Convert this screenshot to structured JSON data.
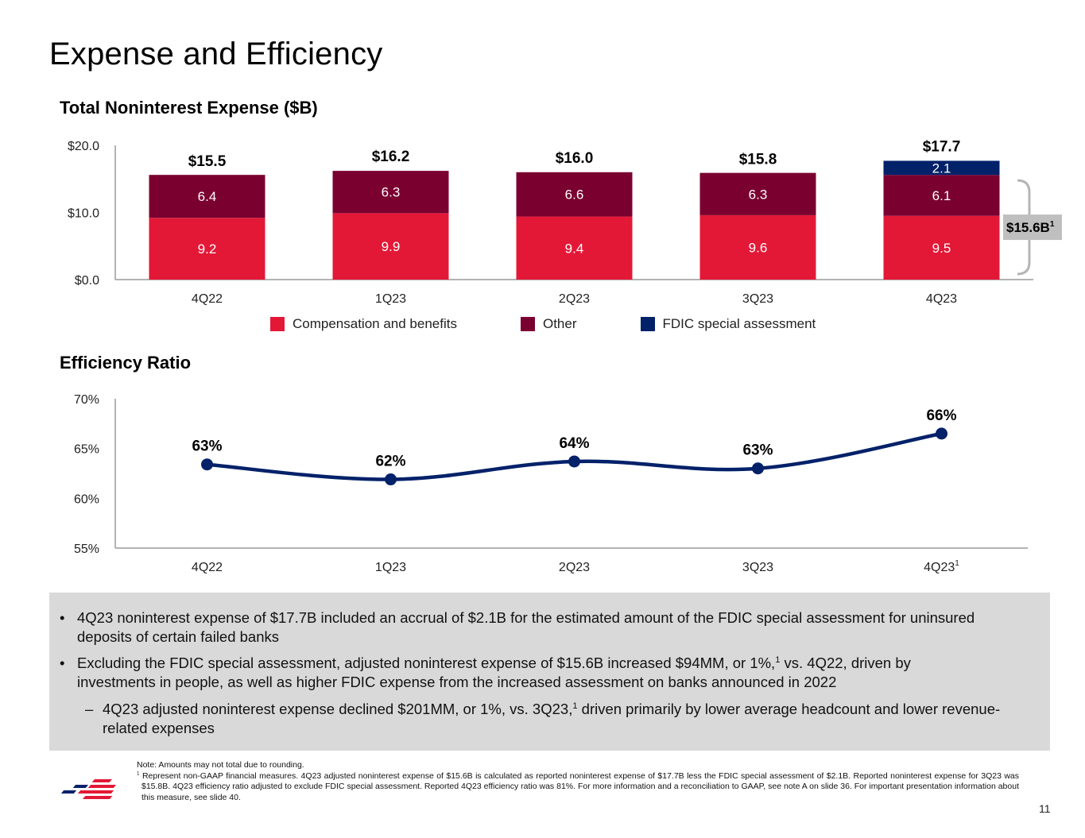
{
  "page": {
    "title": "Expense and Efficiency",
    "page_number": "11"
  },
  "colors": {
    "compensation": "#e31837",
    "other": "#7a0030",
    "fdic": "#012169",
    "line": "#012169",
    "bracket_label_bg": "#bfbfbf",
    "bullet_box_bg": "#d9d9d9"
  },
  "chart_data": [
    {
      "type": "bar",
      "stacked": true,
      "title": "Total Noninterest Expense ($B)",
      "xlabel": "",
      "ylabel": "",
      "ylim": [
        0,
        20
      ],
      "yticks": [
        0,
        10,
        20
      ],
      "ytick_labels": [
        "$0.0",
        "$10.0",
        "$20.0"
      ],
      "categories": [
        "4Q22",
        "1Q23",
        "2Q23",
        "3Q23",
        "4Q23"
      ],
      "series": [
        {
          "name": "Compensation and benefits",
          "color": "#e31837",
          "values": [
            9.2,
            9.9,
            9.4,
            9.6,
            9.5
          ],
          "labels": [
            "9.2",
            "9.9",
            "9.4",
            "9.6",
            "9.5"
          ]
        },
        {
          "name": "Other",
          "color": "#7a0030",
          "values": [
            6.4,
            6.3,
            6.6,
            6.3,
            6.1
          ],
          "labels": [
            "6.4",
            "6.3",
            "6.6",
            "6.3",
            "6.1"
          ]
        },
        {
          "name": "FDIC special assessment",
          "color": "#012169",
          "values": [
            0,
            0,
            0,
            0,
            2.1
          ],
          "labels": [
            "",
            "",
            "",
            "",
            "2.1"
          ]
        }
      ],
      "totals": [
        15.5,
        16.2,
        16.0,
        15.8,
        17.7
      ],
      "total_labels": [
        "$15.5",
        "$16.2",
        "$16.0",
        "$15.8",
        "$17.7"
      ],
      "annotation": {
        "text": "$15.6B",
        "footnote": "1",
        "applies_to": "4Q23",
        "spans_series": [
          "Compensation and benefits",
          "Other"
        ]
      },
      "legend": {
        "position": "bottom",
        "entries": [
          "Compensation and benefits",
          "Other",
          "FDIC special assessment"
        ]
      },
      "grid": false
    },
    {
      "type": "line",
      "title": "Efficiency Ratio",
      "xlabel": "",
      "ylabel": "",
      "ylim": [
        55,
        70
      ],
      "yticks": [
        55,
        60,
        65,
        70
      ],
      "ytick_labels": [
        "55%",
        "60%",
        "65%",
        "70%"
      ],
      "categories": [
        "4Q22",
        "1Q23",
        "2Q23",
        "3Q23",
        "4Q23"
      ],
      "category_footnotes": [
        "",
        "",
        "",
        "",
        "1"
      ],
      "series": [
        {
          "name": "Efficiency Ratio",
          "color": "#012169",
          "values": [
            63.4,
            61.9,
            63.7,
            63.0,
            66.5
          ],
          "labels": [
            "63%",
            "62%",
            "64%",
            "63%",
            "66%"
          ]
        }
      ],
      "grid": false
    }
  ],
  "bullets": [
    {
      "level": 1,
      "mark": "•",
      "text": "4Q23 noninterest expense of $17.7B included an accrual of $2.1B for the estimated amount of the FDIC special assessment for uninsured deposits of certain failed banks"
    },
    {
      "level": 1,
      "mark": "•",
      "text_before": "Excluding the FDIC special assessment, adjusted noninterest expense of $15.6B increased $94MM, or 1%,",
      "footnote": "1",
      "text_after": " vs. 4Q22, driven by investments in people, as well as higher FDIC expense from the increased assessment on banks announced in 2022"
    },
    {
      "level": 2,
      "mark": "–",
      "text_before": "4Q23 adjusted noninterest expense declined $201MM, or 1%, vs. 3Q23,",
      "footnote": "1",
      "text_after": " driven primarily by lower average headcount and lower revenue-related expenses"
    }
  ],
  "notes": {
    "note": "Note: Amounts may not total due to rounding.",
    "footnote_marker": "1",
    "footnote": "Represent non-GAAP financial measures. 4Q23 adjusted noninterest expense of $15.6B is calculated as reported noninterest expense of $17.7B less the FDIC special assessment of $2.1B. Reported noninterest expense for 3Q23 was $15.8B. 4Q23 efficiency ratio adjusted to exclude FDIC special assessment. Reported 4Q23 efficiency ratio was 81%. For more information and a reconciliation to GAAP, see note A on slide 36. For important presentation information about this measure, see slide 40."
  },
  "logo": {
    "name": "bank-flag-logo"
  }
}
